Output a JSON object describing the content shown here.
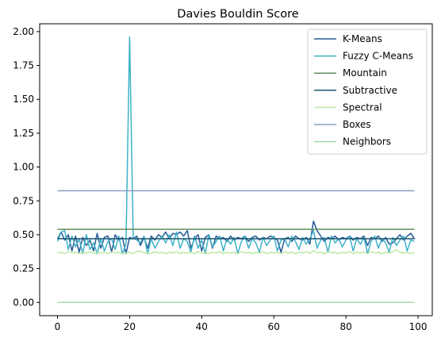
{
  "chart_data": {
    "type": "line",
    "title": "Davies Bouldin Score",
    "xlabel": "",
    "ylabel": "",
    "xlim": [
      -4.95,
      103.95
    ],
    "ylim": [
      -0.098,
      2.058
    ],
    "xticks": [
      0,
      20,
      40,
      60,
      80,
      100
    ],
    "xtick_labels": [
      "0",
      "20",
      "40",
      "60",
      "80",
      "100"
    ],
    "yticks": [
      0.0,
      0.25,
      0.5,
      0.75,
      1.0,
      1.25,
      1.5,
      1.75,
      2.0
    ],
    "ytick_labels": [
      "0.00",
      "0.25",
      "0.50",
      "0.75",
      "1.00",
      "1.25",
      "1.50",
      "1.75",
      "2.00"
    ],
    "grid": false,
    "legend_position": "top-right",
    "series": [
      {
        "name": "K-Means",
        "color": "#245a96",
        "x": [
          0,
          1,
          2,
          3,
          4,
          5,
          6,
          7,
          8,
          9,
          10,
          11,
          12,
          13,
          14,
          15,
          16,
          17,
          18,
          19,
          20,
          21,
          22,
          23,
          24,
          25,
          26,
          27,
          28,
          29,
          30,
          31,
          32,
          33,
          34,
          35,
          36,
          37,
          38,
          39,
          40,
          41,
          42,
          43,
          44,
          45,
          46,
          47,
          48,
          49,
          50,
          51,
          52,
          53,
          54,
          55,
          56,
          57,
          58,
          59,
          60,
          61,
          62,
          63,
          64,
          65,
          66,
          67,
          68,
          69,
          70,
          71,
          72,
          73,
          74,
          75,
          76,
          77,
          78,
          79,
          80,
          81,
          82,
          83,
          84,
          85,
          86,
          87,
          88,
          89,
          90,
          91,
          92,
          93,
          94,
          95,
          96,
          97,
          98,
          99
        ],
        "y": [
          0.47,
          0.52,
          0.46,
          0.5,
          0.38,
          0.49,
          0.37,
          0.48,
          0.42,
          0.46,
          0.38,
          0.51,
          0.4,
          0.48,
          0.49,
          0.37,
          0.5,
          0.46,
          0.48,
          0.36,
          0.48,
          0.47,
          0.49,
          0.42,
          0.48,
          0.4,
          0.49,
          0.46,
          0.5,
          0.48,
          0.52,
          0.47,
          0.51,
          0.5,
          0.52,
          0.49,
          0.53,
          0.4,
          0.47,
          0.5,
          0.38,
          0.48,
          0.5,
          0.4,
          0.49,
          0.47,
          0.48,
          0.45,
          0.49,
          0.46,
          0.48,
          0.47,
          0.49,
          0.45,
          0.48,
          0.49,
          0.46,
          0.48,
          0.47,
          0.49,
          0.48,
          0.46,
          0.37,
          0.47,
          0.48,
          0.45,
          0.49,
          0.47,
          0.46,
          0.48,
          0.43,
          0.6,
          0.53,
          0.49,
          0.45,
          0.48,
          0.47,
          0.49,
          0.46,
          0.48,
          0.47,
          0.49,
          0.46,
          0.48,
          0.47,
          0.49,
          0.42,
          0.48,
          0.47,
          0.49,
          0.45,
          0.48,
          0.43,
          0.44,
          0.47,
          0.5,
          0.46,
          0.49,
          0.51,
          0.47
        ]
      },
      {
        "name": "Fuzzy C-Means",
        "color": "#3eb1c8",
        "x": [
          0,
          1,
          2,
          3,
          4,
          5,
          6,
          7,
          8,
          9,
          10,
          11,
          12,
          13,
          14,
          15,
          16,
          17,
          18,
          19,
          20,
          21,
          22,
          23,
          24,
          25,
          26,
          27,
          28,
          29,
          30,
          31,
          32,
          33,
          34,
          35,
          36,
          37,
          38,
          39,
          40,
          41,
          42,
          43,
          44,
          45,
          46,
          47,
          48,
          49,
          50,
          51,
          52,
          53,
          54,
          55,
          56,
          57,
          58,
          59,
          60,
          61,
          62,
          63,
          64,
          65,
          66,
          67,
          68,
          69,
          70,
          71,
          72,
          73,
          74,
          75,
          76,
          77,
          78,
          79,
          80,
          81,
          82,
          83,
          84,
          85,
          86,
          87,
          88,
          89,
          90,
          91,
          92,
          93,
          94,
          95,
          96,
          97,
          98,
          99
        ],
        "y": [
          0.45,
          0.52,
          0.53,
          0.39,
          0.49,
          0.41,
          0.47,
          0.36,
          0.5,
          0.39,
          0.44,
          0.36,
          0.47,
          0.38,
          0.45,
          0.47,
          0.39,
          0.49,
          0.36,
          0.43,
          1.96,
          0.48,
          0.46,
          0.44,
          0.49,
          0.36,
          0.47,
          0.4,
          0.45,
          0.49,
          0.44,
          0.5,
          0.42,
          0.52,
          0.4,
          0.47,
          0.45,
          0.37,
          0.49,
          0.4,
          0.46,
          0.36,
          0.5,
          0.41,
          0.45,
          0.49,
          0.38,
          0.47,
          0.43,
          0.48,
          0.36,
          0.45,
          0.49,
          0.4,
          0.47,
          0.44,
          0.37,
          0.48,
          0.42,
          0.46,
          0.49,
          0.38,
          0.46,
          0.47,
          0.41,
          0.49,
          0.45,
          0.39,
          0.48,
          0.43,
          0.47,
          0.53,
          0.4,
          0.46,
          0.48,
          0.37,
          0.49,
          0.44,
          0.47,
          0.41,
          0.46,
          0.49,
          0.38,
          0.47,
          0.43,
          0.48,
          0.36,
          0.45,
          0.49,
          0.4,
          0.47,
          0.44,
          0.37,
          0.48,
          0.42,
          0.46,
          0.49,
          0.38,
          0.46,
          0.45
        ]
      },
      {
        "name": "Mountain",
        "color": "#5e8d5e",
        "x": [
          0,
          99
        ],
        "y": [
          0.54,
          0.54
        ]
      },
      {
        "name": "Subtractive",
        "color": "#1a5470",
        "x": [
          0,
          99
        ],
        "y": [
          0.47,
          0.47
        ]
      },
      {
        "name": "Spectral",
        "color": "#bde8a5",
        "x": [
          0,
          1,
          2,
          3,
          4,
          5,
          6,
          7,
          8,
          9,
          10,
          11,
          12,
          13,
          14,
          15,
          16,
          17,
          18,
          19,
          20,
          21,
          22,
          23,
          24,
          25,
          26,
          27,
          28,
          29,
          30,
          31,
          32,
          33,
          34,
          35,
          36,
          37,
          38,
          39,
          40,
          41,
          42,
          43,
          44,
          45,
          46,
          47,
          48,
          49,
          50,
          51,
          52,
          53,
          54,
          55,
          56,
          57,
          58,
          59,
          60,
          61,
          62,
          63,
          64,
          65,
          66,
          67,
          68,
          69,
          70,
          71,
          72,
          73,
          74,
          75,
          76,
          77,
          78,
          79,
          80,
          81,
          82,
          83,
          84,
          85,
          86,
          87,
          88,
          89,
          90,
          91,
          92,
          93,
          94,
          95,
          96,
          97,
          98,
          99
        ],
        "y": [
          0.365,
          0.37,
          0.36,
          0.375,
          0.365,
          0.37,
          0.36,
          0.37,
          0.365,
          0.375,
          0.36,
          0.37,
          0.365,
          0.37,
          0.36,
          0.375,
          0.365,
          0.37,
          0.36,
          0.365,
          0.37,
          0.36,
          0.375,
          0.38,
          0.365,
          0.37,
          0.36,
          0.375,
          0.365,
          0.37,
          0.36,
          0.37,
          0.365,
          0.375,
          0.36,
          0.37,
          0.365,
          0.37,
          0.36,
          0.375,
          0.365,
          0.37,
          0.36,
          0.37,
          0.365,
          0.375,
          0.36,
          0.37,
          0.365,
          0.37,
          0.36,
          0.375,
          0.365,
          0.37,
          0.36,
          0.37,
          0.365,
          0.375,
          0.36,
          0.37,
          0.365,
          0.37,
          0.36,
          0.375,
          0.365,
          0.37,
          0.36,
          0.37,
          0.365,
          0.375,
          0.36,
          0.385,
          0.365,
          0.37,
          0.36,
          0.375,
          0.365,
          0.37,
          0.36,
          0.37,
          0.365,
          0.375,
          0.36,
          0.37,
          0.365,
          0.37,
          0.36,
          0.375,
          0.365,
          0.37,
          0.36,
          0.37,
          0.365,
          0.375,
          0.39,
          0.37,
          0.365,
          0.37,
          0.36,
          0.37
        ]
      },
      {
        "name": "Boxes",
        "color": "#8b9dc3",
        "x": [
          0,
          99
        ],
        "y": [
          0.825,
          0.825
        ]
      },
      {
        "name": "Neighbors",
        "color": "#a3ddb0",
        "x": [
          0,
          99
        ],
        "y": [
          0.0,
          0.0
        ]
      }
    ]
  }
}
